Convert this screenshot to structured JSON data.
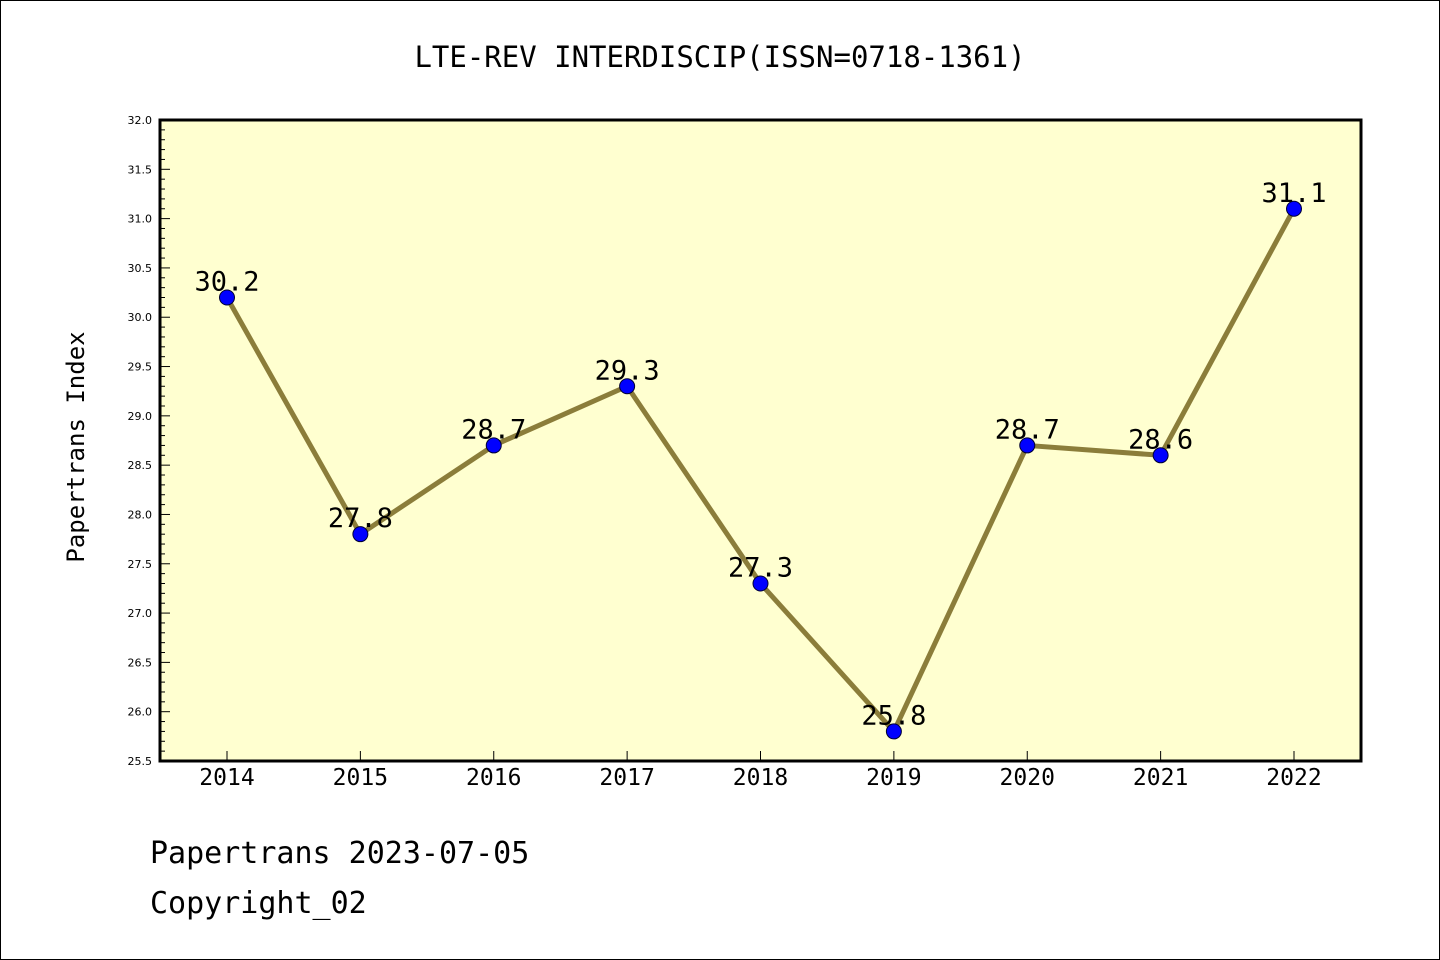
{
  "footer": {
    "date_line": "Papertrans 2023-07-05",
    "copyright_line": "Copyright_02"
  },
  "chart_data": {
    "type": "line",
    "title": "LTE-REV INTERDISCIP(ISSN=0718-1361)",
    "xlabel": "",
    "ylabel": "Papertrans Index",
    "categories": [
      "2014",
      "2015",
      "2016",
      "2017",
      "2018",
      "2019",
      "2020",
      "2021",
      "2022"
    ],
    "series": [
      {
        "values": [
          30.2,
          27.8,
          28.7,
          29.3,
          27.3,
          25.8,
          28.7,
          28.6,
          31.1
        ],
        "data_labels": [
          "30.2",
          "27.8",
          "28.7",
          "29.3",
          "27.3",
          "25.8",
          "28.7",
          "28.6",
          "31.1"
        ]
      }
    ],
    "ylim": [
      25.5,
      32.0
    ],
    "yticks": [
      "25.5",
      "26.0",
      "26.5",
      "27.0",
      "27.5",
      "28.0",
      "28.5",
      "29.0",
      "29.5",
      "30.0",
      "30.5",
      "31.0",
      "31.5",
      "32.0"
    ],
    "grid": false,
    "colors": {
      "plot_background": "#ffffd0",
      "line": "#8b7d3a",
      "marker": "#0000ff"
    }
  }
}
